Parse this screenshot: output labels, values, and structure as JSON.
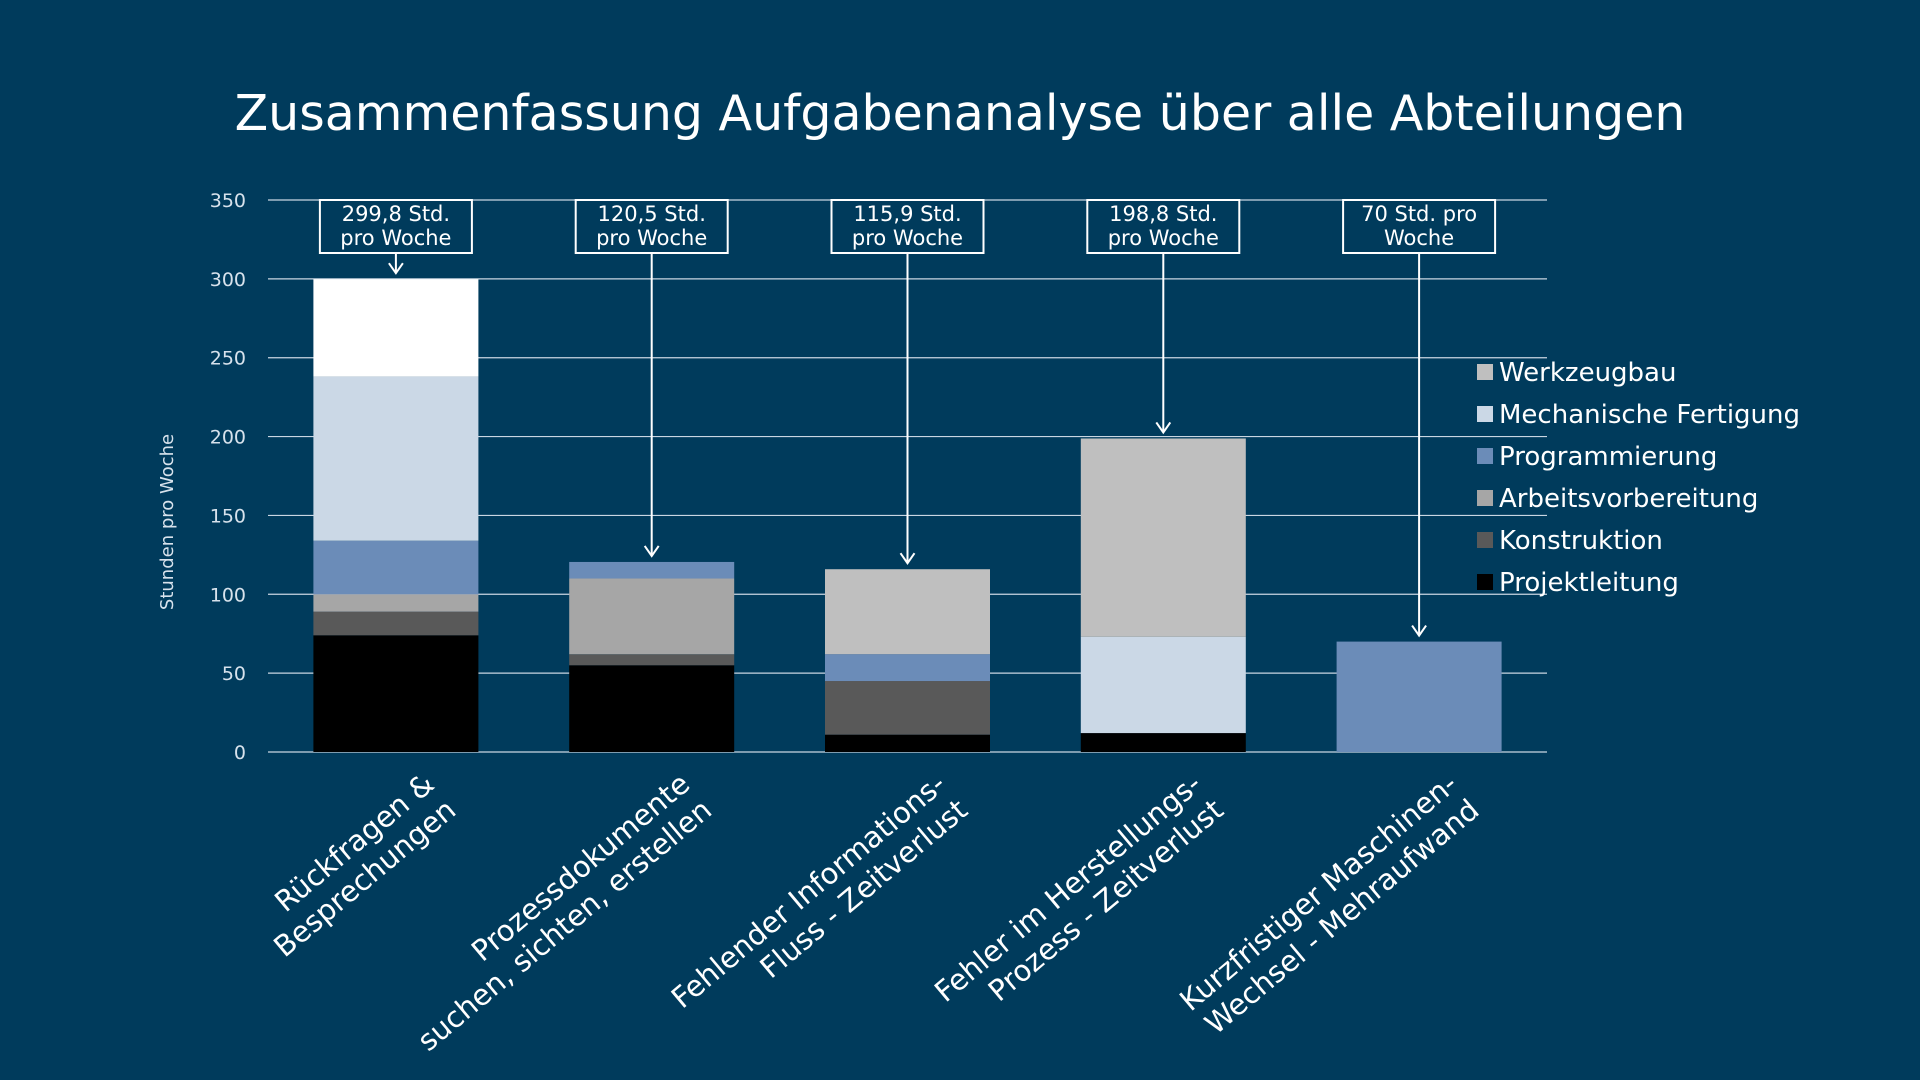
{
  "chart_data": {
    "type": "bar",
    "stacked": true,
    "title": "Zusammenfassung Aufgabenanalyse über alle Abteilungen",
    "ylabel": "Stunden pro Woche",
    "ylim": [
      0,
      350
    ],
    "yticks": [
      0,
      50,
      100,
      150,
      200,
      250,
      300,
      350
    ],
    "grid": true,
    "legend_position": "right",
    "categories": [
      [
        "Rückfragen &",
        "Besprechungen"
      ],
      [
        "Prozessdokumente",
        "suchen, sichten, erstellen"
      ],
      [
        "Fehlender Informations-",
        "Fluss - Zeitverlust"
      ],
      [
        "Fehler im Herstellungs-",
        "Prozess - Zeitverlust"
      ],
      [
        "Kurzfristiger Maschinen-",
        "Wechsel - Mehraufwand"
      ]
    ],
    "series": [
      {
        "name": "Projektleitung",
        "color": "#000000",
        "values": [
          74,
          55,
          11,
          12,
          0
        ]
      },
      {
        "name": "Konstruktion",
        "color": "#595959",
        "values": [
          15,
          7,
          34,
          0,
          0
        ]
      },
      {
        "name": "Arbeitsvorbereitung",
        "color": "#a6a6a6",
        "values": [
          11,
          48,
          0,
          0,
          0
        ]
      },
      {
        "name": "Programmierung",
        "color": "#6b8cb8",
        "values": [
          34,
          10.5,
          17,
          0,
          70
        ]
      },
      {
        "name": "Mechanische Fertigung",
        "color": "#cbd8e6",
        "values": [
          104,
          0,
          0,
          61,
          0
        ]
      },
      {
        "name": "Werkzeugbau",
        "color": "#bfbfbf",
        "values": [
          0,
          0,
          53.9,
          125.8,
          0
        ]
      },
      {
        "name": "",
        "color": "#ffffff",
        "values": [
          61.8,
          0,
          0,
          0,
          0
        ]
      }
    ],
    "legend": [
      {
        "name": "Werkzeugbau",
        "color": "#bfbfbf"
      },
      {
        "name": "Mechanische Fertigung",
        "color": "#cbd8e6"
      },
      {
        "name": "Programmierung",
        "color": "#6b8cb8"
      },
      {
        "name": "Arbeitsvorbereitung",
        "color": "#a6a6a6"
      },
      {
        "name": "Konstruktion",
        "color": "#595959"
      },
      {
        "name": "Projektleitung",
        "color": "#000000"
      }
    ],
    "annotations": [
      {
        "lines": [
          "299,8 Std.",
          "pro Woche"
        ],
        "total": 299.8
      },
      {
        "lines": [
          "120,5 Std.",
          "pro Woche"
        ],
        "total": 120.5
      },
      {
        "lines": [
          "115,9 Std.",
          "pro Woche"
        ],
        "total": 115.9
      },
      {
        "lines": [
          "198,8 Std.",
          "pro Woche"
        ],
        "total": 198.8
      },
      {
        "lines": [
          "70 Std. pro",
          "Woche"
        ],
        "total": 70
      }
    ]
  },
  "colors": {
    "background": "#003b5c",
    "grid": "#c9d6e2",
    "text": "#ffffff"
  }
}
